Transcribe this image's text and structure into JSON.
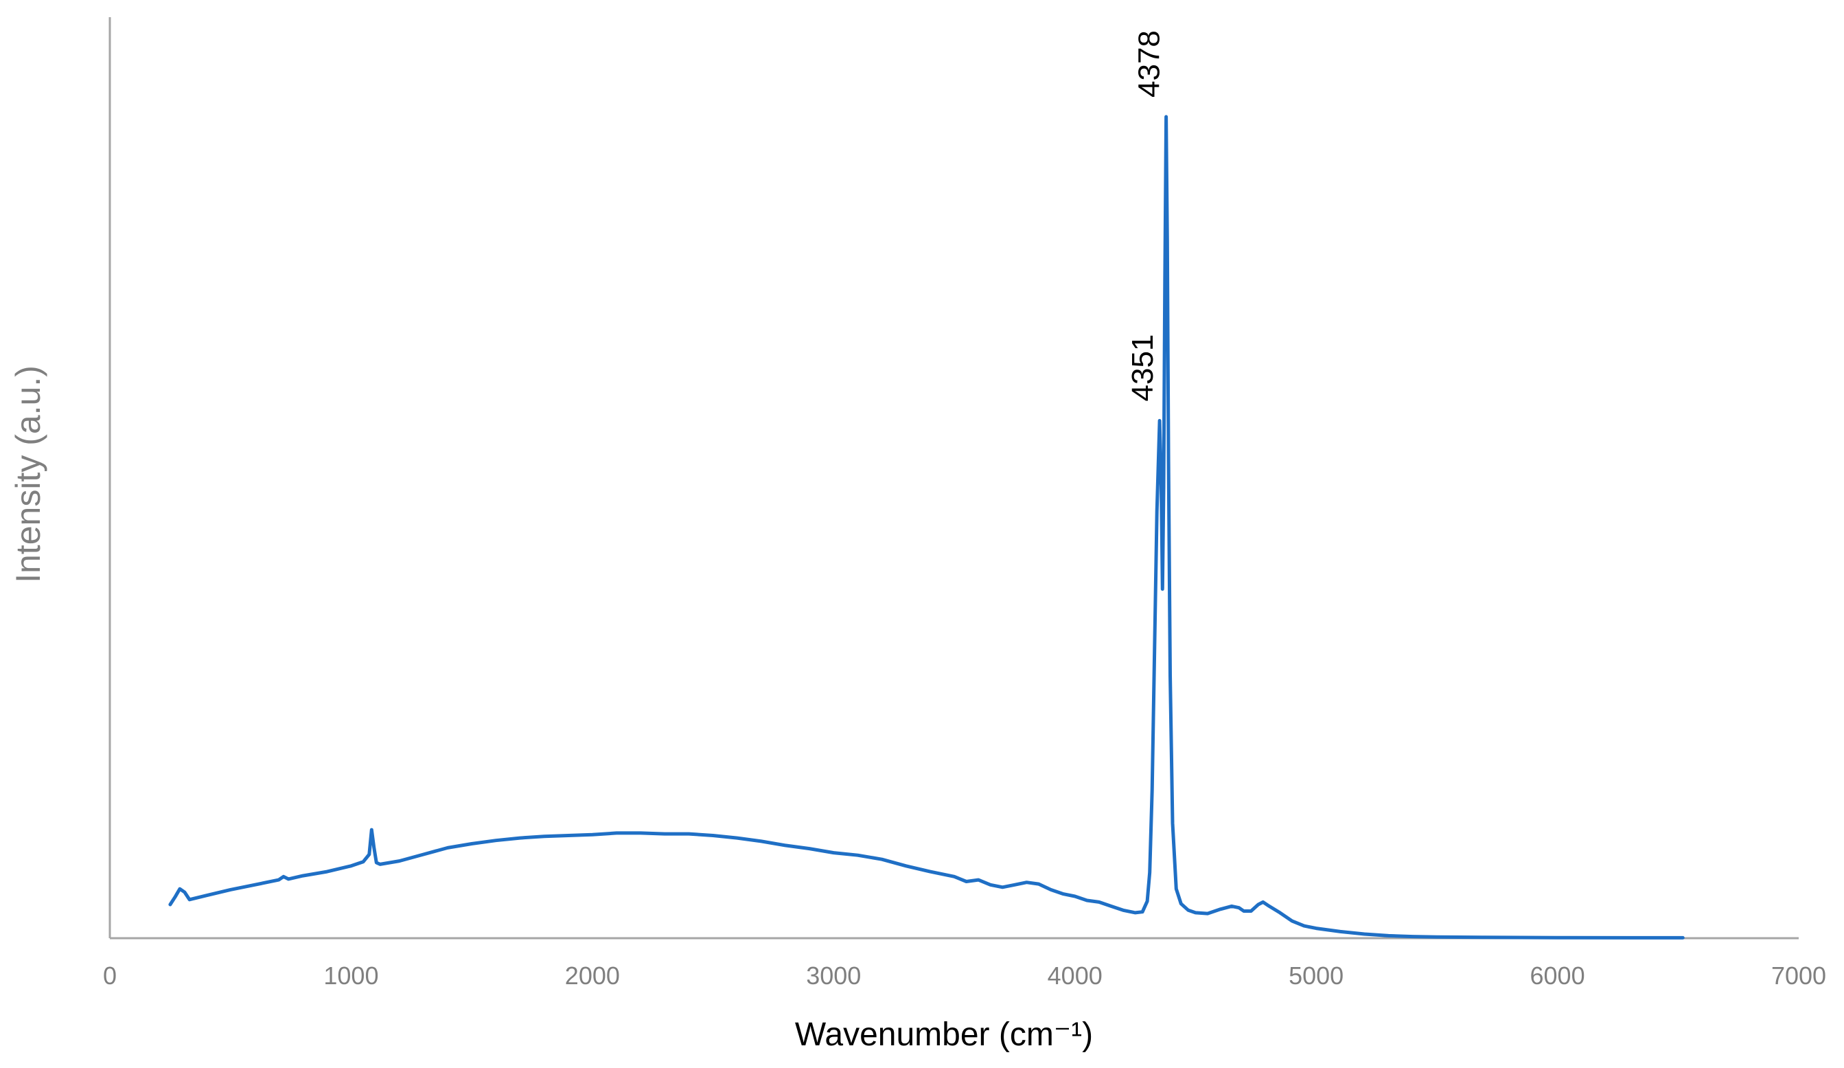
{
  "chart_data": {
    "type": "line",
    "title": "",
    "xlabel": "Wavenumber (cm⁻¹)",
    "ylabel": "Intensity (a.u.)",
    "xlim": [
      0,
      7000
    ],
    "ylim": [
      0,
      100
    ],
    "x_ticks": [
      "0",
      "1000",
      "2000",
      "3000",
      "4000",
      "5000",
      "6000",
      "7000"
    ],
    "y_ticks": [],
    "grid": false,
    "legend": "none",
    "line_color": "#1f6fc5",
    "axis_color": "#a6a6a6",
    "series": [
      {
        "values_note": "",
        "x": [
          250,
          270,
          290,
          310,
          330,
          400,
          500,
          600,
          700,
          720,
          740,
          800,
          900,
          1000,
          1050,
          1075,
          1085,
          1095,
          1105,
          1120,
          1200,
          1300,
          1400,
          1500,
          1600,
          1700,
          1800,
          1900,
          2000,
          2100,
          2200,
          2300,
          2400,
          2500,
          2600,
          2700,
          2800,
          2900,
          3000,
          3100,
          3200,
          3300,
          3400,
          3500,
          3550,
          3600,
          3650,
          3700,
          3750,
          3800,
          3850,
          3900,
          3950,
          4000,
          4050,
          4100,
          4150,
          4200,
          4250,
          4280,
          4300,
          4310,
          4320,
          4330,
          4340,
          4351,
          4358,
          4363,
          4368,
          4373,
          4378,
          4383,
          4388,
          4395,
          4405,
          4420,
          4440,
          4470,
          4500,
          4550,
          4600,
          4650,
          4680,
          4700,
          4730,
          4760,
          4780,
          4800,
          4850,
          4900,
          4950,
          5000,
          5050,
          5100,
          5200,
          5300,
          5400,
          5500,
          5700,
          6000,
          6300,
          6520
        ],
        "y": [
          4.1,
          5.0,
          6.0,
          5.6,
          4.7,
          5.2,
          5.9,
          6.5,
          7.1,
          7.5,
          7.2,
          7.6,
          8.1,
          8.8,
          9.3,
          10.2,
          13.2,
          11.0,
          9.2,
          9.0,
          9.4,
          10.2,
          11.0,
          11.5,
          11.9,
          12.2,
          12.4,
          12.5,
          12.6,
          12.8,
          12.8,
          12.7,
          12.7,
          12.5,
          12.2,
          11.8,
          11.3,
          10.9,
          10.4,
          10.1,
          9.6,
          8.8,
          8.1,
          7.5,
          6.9,
          7.1,
          6.5,
          6.2,
          6.5,
          6.8,
          6.6,
          5.9,
          5.4,
          5.1,
          4.6,
          4.4,
          3.9,
          3.4,
          3.1,
          3.2,
          4.5,
          8.0,
          18.0,
          35.0,
          52.0,
          63.0,
          55.0,
          42.5,
          55.0,
          80.0,
          100.0,
          85.0,
          58.0,
          32.0,
          14.0,
          6.0,
          4.2,
          3.4,
          3.1,
          3.0,
          3.5,
          3.9,
          3.7,
          3.3,
          3.3,
          4.1,
          4.4,
          4.0,
          3.1,
          2.1,
          1.5,
          1.2,
          1.0,
          0.8,
          0.5,
          0.3,
          0.2,
          0.15,
          0.1,
          0.07,
          0.05,
          0.05
        ]
      }
    ],
    "annotations": [
      {
        "text": "4378",
        "x": 4378
      },
      {
        "text": "4351",
        "x": 4351
      }
    ]
  }
}
